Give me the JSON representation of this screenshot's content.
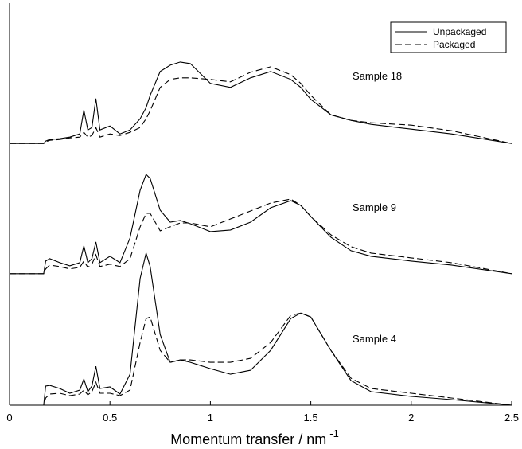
{
  "chart_data": {
    "type": "line",
    "xlabel": "Momentum transfer / nm",
    "xlabel_superscript": "-1",
    "annotations": [
      "Sample 18",
      "Sample 9",
      "Sample 4"
    ],
    "xlim": [
      0,
      2.5
    ],
    "xticks": [
      0,
      0.5,
      1,
      1.5,
      2,
      2.5
    ],
    "ylim": [
      0,
      100
    ],
    "legend": "upper right",
    "x": [
      0,
      0.17,
      0.18,
      0.2,
      0.25,
      0.3,
      0.35,
      0.37,
      0.39,
      0.41,
      0.43,
      0.45,
      0.5,
      0.55,
      0.6,
      0.65,
      0.68,
      0.7,
      0.75,
      0.8,
      0.85,
      0.9,
      1.0,
      1.1,
      1.2,
      1.3,
      1.4,
      1.45,
      1.5,
      1.6,
      1.7,
      1.8,
      2.0,
      2.2,
      2.5
    ],
    "series": [
      {
        "name": "Unpackaged",
        "color": "#000000",
        "dashed": false,
        "values": [
          65.9,
          65.9,
          66.5,
          66.9,
          67.1,
          67.5,
          68.3,
          74.3,
          69.3,
          69.9,
          77.2,
          69.3,
          70.3,
          68.3,
          69.3,
          72.1,
          74.9,
          78.0,
          84.0,
          85.6,
          86.4,
          86.0,
          81.0,
          80.0,
          82.4,
          84.0,
          82.0,
          80.0,
          77.0,
          73.1,
          71.7,
          70.7,
          69.5,
          68.3,
          65.9
        ]
      },
      {
        "name": "Packaged",
        "color": "#000000",
        "dashed": true,
        "values": [
          65.9,
          65.9,
          66.3,
          66.7,
          66.9,
          67.3,
          67.5,
          68.7,
          67.5,
          67.9,
          69.9,
          67.5,
          68.3,
          67.9,
          68.7,
          69.9,
          72.1,
          74.1,
          80.0,
          82.0,
          82.4,
          82.4,
          82.0,
          81.4,
          83.8,
          85.2,
          83.2,
          81.0,
          78.0,
          73.1,
          71.7,
          71.1,
          70.5,
          69.1,
          65.9
        ]
      },
      {
        "name": "Unpackaged",
        "color": "#000000",
        "dashed": false,
        "values": [
          33.1,
          33.1,
          36.3,
          36.9,
          35.9,
          35.1,
          35.9,
          40.1,
          35.9,
          36.9,
          41.1,
          35.9,
          37.5,
          35.9,
          42.1,
          54.1,
          58.1,
          57.1,
          49.1,
          46.1,
          46.5,
          45.7,
          43.7,
          44.1,
          46.1,
          49.7,
          51.5,
          50.3,
          47.5,
          42.3,
          38.9,
          37.5,
          36.3,
          35.3,
          33.1
        ]
      },
      {
        "name": "Packaged",
        "color": "#000000",
        "dashed": true,
        "values": [
          33.1,
          33.1,
          34.3,
          35.3,
          34.9,
          34.3,
          34.7,
          36.3,
          34.7,
          35.5,
          37.9,
          34.9,
          35.5,
          34.9,
          36.9,
          44.9,
          48.3,
          48.3,
          43.9,
          44.9,
          45.9,
          45.9,
          44.9,
          46.9,
          48.9,
          50.9,
          51.9,
          50.3,
          47.5,
          42.9,
          39.9,
          38.3,
          37.1,
          35.9,
          33.1
        ]
      },
      {
        "name": "Unpackaged",
        "color": "#000000",
        "dashed": false,
        "values": [
          0,
          0,
          4.8,
          5.0,
          4.2,
          3.0,
          3.8,
          6.6,
          3.4,
          4.8,
          9.8,
          4.2,
          4.6,
          2.8,
          7.8,
          31.9,
          38.3,
          34.9,
          17.8,
          10.8,
          11.4,
          10.8,
          9.2,
          7.8,
          8.8,
          13.8,
          21.8,
          23.2,
          22.2,
          13.8,
          6.2,
          3.4,
          2.2,
          1.4,
          0
        ]
      },
      {
        "name": "Packaged",
        "color": "#000000",
        "dashed": true,
        "values": [
          0,
          0,
          1.8,
          2.8,
          3.0,
          2.4,
          2.8,
          3.8,
          2.6,
          3.4,
          5.8,
          3.0,
          3.0,
          2.4,
          3.8,
          15.8,
          21.8,
          22.2,
          13.8,
          10.8,
          11.4,
          11.4,
          10.8,
          10.8,
          11.8,
          15.8,
          22.6,
          23.2,
          22.2,
          13.8,
          6.8,
          4.2,
          3.0,
          1.8,
          0
        ]
      }
    ]
  }
}
